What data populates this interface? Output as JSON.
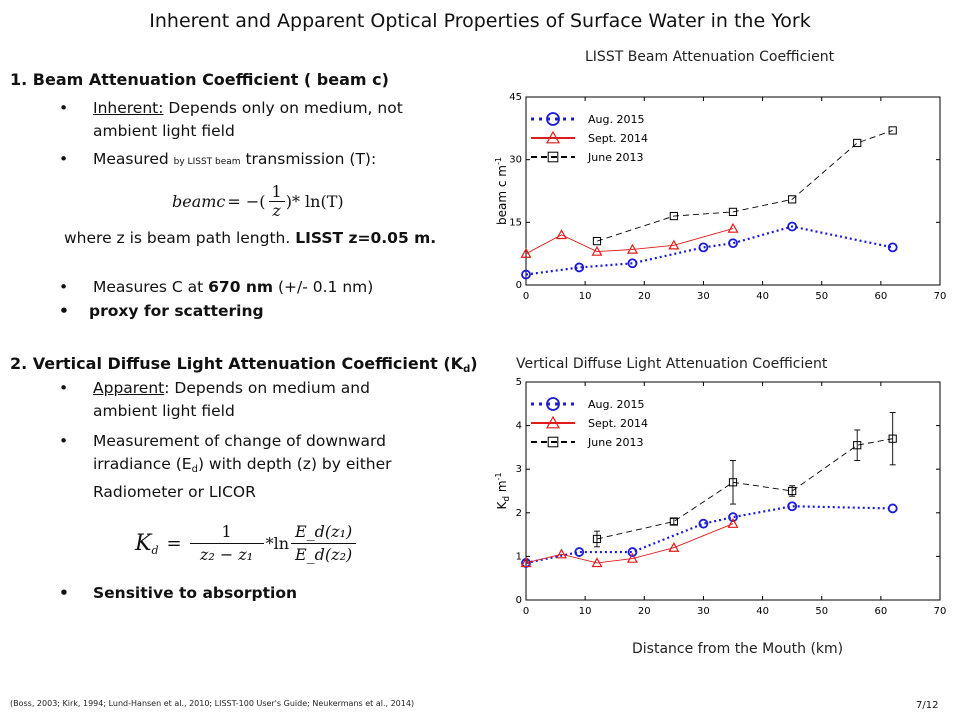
{
  "title": "Inherent and Apparent Optical Properties of Surface Water in the York",
  "left": {
    "s1_heading": "1. Beam Attenuation Coefficient ( beam c)",
    "s1_b1_label": "Inherent:",
    "s1_b1_rest": " Depends only on medium, not",
    "s1_b1_line2": "ambient light field",
    "s1_b2_pre": "Measured ",
    "s1_b2_small": "by LISST beam",
    "s1_b2_post": " transmission (T):",
    "formula1": {
      "lhs": "beamc",
      "eq": "= −(",
      "num": "1",
      "den": "z",
      "rest": ")* ln(T)"
    },
    "s1_where_pre": "where z is beam path length. ",
    "s1_where_bold": "LISST z=0.05 m.",
    "s1_b3_pre": "Measures C at ",
    "s1_b3_bold": "670 nm",
    "s1_b3_post": " (+/- 0.1 nm)",
    "s1_b4": "proxy for scattering",
    "s2_heading": "2. Vertical Diffuse Light Attenuation Coefficient (K",
    "s2_heading_sub": "d",
    "s2_heading_end": ")",
    "s2_b1_label": "Apparent",
    "s2_b1_rest": ": Depends on medium and",
    "s2_b1_line2": "ambient light field",
    "s2_b2_line1": "Measurement of change of downward",
    "s2_b2_line2_pre": "irradiance (E",
    "s2_b2_line2_sub": "d",
    "s2_b2_line2_post": ")  with depth (z) by either",
    "s2_b2_line3": "Radiometer or LICOR",
    "formula2": {
      "lhs": "K",
      "lhs_sub": "d",
      "num": "1",
      "den": "z₂ − z₁",
      "ln": "*ln",
      "fnum": "E_d(z₁)",
      "fden": "E_d(z₂)"
    },
    "s2_b3": "Sensitive to absorption",
    "bullet_char": "•"
  },
  "chart_caption_1": "LISST Beam Attenuation Coefficient",
  "chart_caption_2": "Vertical Diffuse Light Attenuation Coefficient",
  "x_caption": "Distance from the Mouth (km)",
  "citation": "(Boss, 2003; Kirk, 1994; Lund-Hansen et al., 2010; LISST-100 User's Guide; Neukermans et al., 2014)",
  "page_number": "7/12",
  "colors": {
    "aug": "#1a1ad8",
    "sept": "#e11a1a",
    "june": "#000000"
  },
  "chart_data": [
    {
      "type": "line",
      "title": "LISST Beam Attenuation Coefficient",
      "xlabel": "",
      "ylabel": "beam c m",
      "ylabel_sup": "-1",
      "xlim": [
        0,
        70
      ],
      "ylim": [
        0,
        45
      ],
      "xticks": [
        0,
        10,
        20,
        30,
        40,
        50,
        60,
        70
      ],
      "yticks": [
        0,
        15,
        30,
        45
      ],
      "legend": "top-left",
      "series": [
        {
          "name": "Aug. 2015",
          "marker": "circle",
          "line": "dotted",
          "color": "#1a1ad8",
          "x": [
            0,
            9,
            18,
            30,
            35,
            45,
            62
          ],
          "y": [
            2.5,
            4.2,
            5.2,
            9,
            10,
            14,
            9
          ]
        },
        {
          "name": "Sept. 2014",
          "marker": "triangle",
          "line": "solid",
          "color": "#e11a1a",
          "x": [
            0,
            6,
            12,
            18,
            25,
            35
          ],
          "y": [
            7.5,
            12,
            8,
            8.5,
            9.5,
            13.5
          ]
        },
        {
          "name": "June 2013",
          "marker": "square",
          "line": "dashed",
          "color": "#000000",
          "x": [
            12,
            25,
            35,
            45,
            56,
            62
          ],
          "y": [
            10.5,
            16.5,
            17.5,
            20.5,
            34,
            37
          ]
        }
      ]
    },
    {
      "type": "line",
      "title": "Vertical Diffuse Light Attenuation Coefficient",
      "xlabel": "Distance from the Mouth (km)",
      "ylabel": "K",
      "ylabel_sub": "d",
      "ylabel_rest": " m",
      "ylabel_sup": "-1",
      "xlim": [
        0,
        70
      ],
      "ylim": [
        0,
        5
      ],
      "xticks": [
        0,
        10,
        20,
        30,
        40,
        50,
        60,
        70
      ],
      "yticks": [
        0,
        1,
        2,
        3,
        4,
        5
      ],
      "legend": "top-left",
      "series": [
        {
          "name": "Aug. 2015",
          "marker": "circle",
          "line": "dotted",
          "color": "#1a1ad8",
          "x": [
            0,
            9,
            18,
            30,
            35,
            45,
            62
          ],
          "y": [
            0.85,
            1.1,
            1.1,
            1.75,
            1.9,
            2.15,
            2.1
          ]
        },
        {
          "name": "Sept. 2014",
          "marker": "triangle",
          "line": "solid",
          "color": "#e11a1a",
          "x": [
            0,
            6,
            12,
            18,
            25,
            35
          ],
          "y": [
            0.85,
            1.05,
            0.85,
            0.95,
            1.2,
            1.75
          ]
        },
        {
          "name": "June 2013",
          "marker": "square",
          "line": "dashed",
          "color": "#000000",
          "x": [
            12,
            25,
            35,
            45,
            56,
            62
          ],
          "y": [
            1.4,
            1.8,
            2.7,
            2.5,
            3.55,
            3.7
          ],
          "err": [
            0.18,
            0.07,
            0.5,
            0.12,
            0.35,
            0.6
          ]
        }
      ]
    }
  ]
}
